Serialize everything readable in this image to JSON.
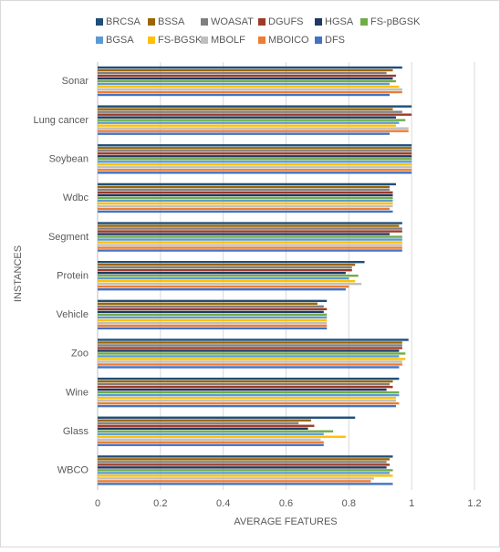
{
  "chart_data": {
    "type": "hbar",
    "xlabel": "AVERAGE FEATURES",
    "ylabel": "INSTANCES",
    "categories": [
      "Sonar",
      "Lung cancer",
      "Soybean",
      "Wdbc",
      "Segment",
      "Protein",
      "Vehicle",
      "Zoo",
      "Wine",
      "Glass",
      "WBCO"
    ],
    "series": [
      {
        "name": "BRCSA",
        "color": "#1f4e79",
        "values": [
          0.97,
          1.0,
          1.0,
          0.95,
          0.97,
          0.85,
          0.73,
          0.99,
          0.96,
          0.82,
          0.94
        ]
      },
      {
        "name": "BSSA",
        "color": "#9c6500",
        "values": [
          0.94,
          0.94,
          1.0,
          0.93,
          0.96,
          0.82,
          0.7,
          0.97,
          0.94,
          0.68,
          0.93
        ]
      },
      {
        "name": "WOASAT",
        "color": "#7f7f7f",
        "values": [
          0.92,
          0.97,
          1.0,
          0.93,
          0.97,
          0.81,
          0.72,
          0.97,
          0.93,
          0.64,
          0.92
        ]
      },
      {
        "name": "DGUFS",
        "color": "#9e3a26",
        "values": [
          0.95,
          1.0,
          1.0,
          0.94,
          0.97,
          0.81,
          0.73,
          0.97,
          0.94,
          0.69,
          0.93
        ]
      },
      {
        "name": "HGSA",
        "color": "#1f3864",
        "values": [
          0.94,
          0.95,
          1.0,
          0.94,
          0.93,
          0.79,
          0.72,
          0.96,
          0.92,
          0.67,
          0.92
        ]
      },
      {
        "name": "FS-pBGSK",
        "color": "#70ad47",
        "values": [
          0.95,
          0.98,
          1.0,
          0.94,
          0.97,
          0.83,
          0.73,
          0.98,
          0.96,
          0.75,
          0.94
        ]
      },
      {
        "name": "BGSA",
        "color": "#5b9bd5",
        "values": [
          0.93,
          0.96,
          1.0,
          0.94,
          0.97,
          0.8,
          0.73,
          0.96,
          0.96,
          0.72,
          0.93
        ]
      },
      {
        "name": "FS-BGSK",
        "color": "#ffc000",
        "values": [
          0.96,
          0.95,
          1.0,
          0.94,
          0.97,
          0.82,
          0.73,
          0.98,
          0.95,
          0.79,
          0.94
        ]
      },
      {
        "name": "MBOLF",
        "color": "#bfbfbf",
        "values": [
          0.97,
          0.99,
          1.0,
          0.94,
          0.97,
          0.84,
          0.73,
          0.97,
          0.95,
          0.71,
          0.88
        ]
      },
      {
        "name": "MBOICO",
        "color": "#ed7d31",
        "values": [
          0.97,
          0.99,
          1.0,
          0.93,
          0.97,
          0.8,
          0.73,
          0.97,
          0.96,
          0.72,
          0.87
        ]
      },
      {
        "name": "DFS",
        "color": "#4472c4",
        "values": [
          0.93,
          0.93,
          1.0,
          0.94,
          0.97,
          0.79,
          0.73,
          0.96,
          0.95,
          0.72,
          0.94
        ]
      }
    ],
    "xlim": [
      0,
      1.2
    ],
    "xticks": [
      0,
      0.2,
      0.4,
      0.6,
      0.8,
      1,
      1.2
    ],
    "grid": true
  }
}
